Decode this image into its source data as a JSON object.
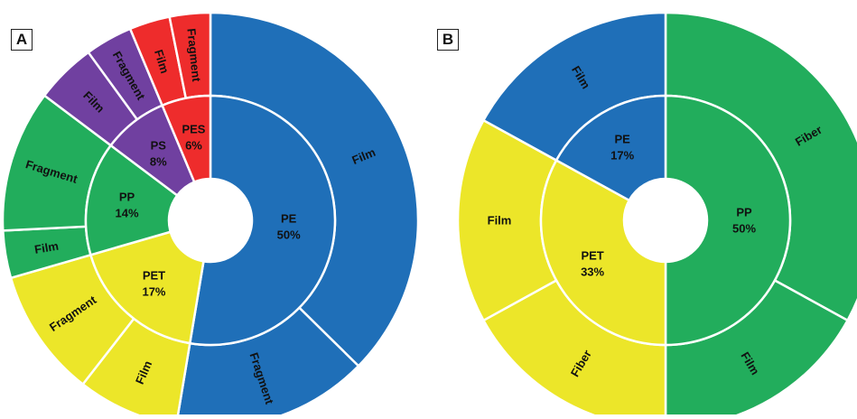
{
  "panels": [
    {
      "id": "A"
    },
    {
      "id": "B"
    }
  ],
  "chart_data": [
    {
      "type": "pie",
      "subtype": "sunburst",
      "panel": "A",
      "inner": [
        {
          "name": "PE",
          "label": "50%",
          "value": 50,
          "color": "#1f6fb8"
        },
        {
          "name": "PET",
          "label": "17%",
          "value": 17,
          "color": "#ece629"
        },
        {
          "name": "PP",
          "label": "14%",
          "value": 14,
          "color": "#22ad5c"
        },
        {
          "name": "PS",
          "label": "8%",
          "value": 8,
          "color": "#7040a0"
        },
        {
          "name": "PES",
          "label": "6%",
          "value": 6,
          "color": "#ee2c2c"
        }
      ],
      "outer": [
        {
          "parent": "PE",
          "name": "Film",
          "value": 35.5
        },
        {
          "parent": "PE",
          "name": "Fragment",
          "value": 14.5
        },
        {
          "parent": "PET",
          "name": "Film",
          "value": 7.5
        },
        {
          "parent": "PET",
          "name": "Fragment",
          "value": 9.5
        },
        {
          "parent": "PP",
          "name": "Film",
          "value": 3.5
        },
        {
          "parent": "PP",
          "name": "Fragment",
          "value": 10.5
        },
        {
          "parent": "PS",
          "name": "Film",
          "value": 4.5
        },
        {
          "parent": "PS",
          "name": "Fragment",
          "value": 3.5
        },
        {
          "parent": "PES",
          "name": "Film",
          "value": 3
        },
        {
          "parent": "PES",
          "name": "Fragment",
          "value": 3
        }
      ]
    },
    {
      "type": "pie",
      "subtype": "sunburst",
      "panel": "B",
      "inner": [
        {
          "name": "PP",
          "label": "50%",
          "value": 50,
          "color": "#22ad5c"
        },
        {
          "name": "PET",
          "label": "33%",
          "value": 33,
          "color": "#ece629"
        },
        {
          "name": "PE",
          "label": "17%",
          "value": 17,
          "color": "#1f6fb8"
        }
      ],
      "outer": [
        {
          "parent": "PP",
          "name": "Fiber",
          "value": 33
        },
        {
          "parent": "PP",
          "name": "Film",
          "value": 17
        },
        {
          "parent": "PET",
          "name": "Fiber",
          "value": 17
        },
        {
          "parent": "PET",
          "name": "Film",
          "value": 16
        },
        {
          "parent": "PE",
          "name": "Film",
          "value": 17
        }
      ]
    }
  ]
}
